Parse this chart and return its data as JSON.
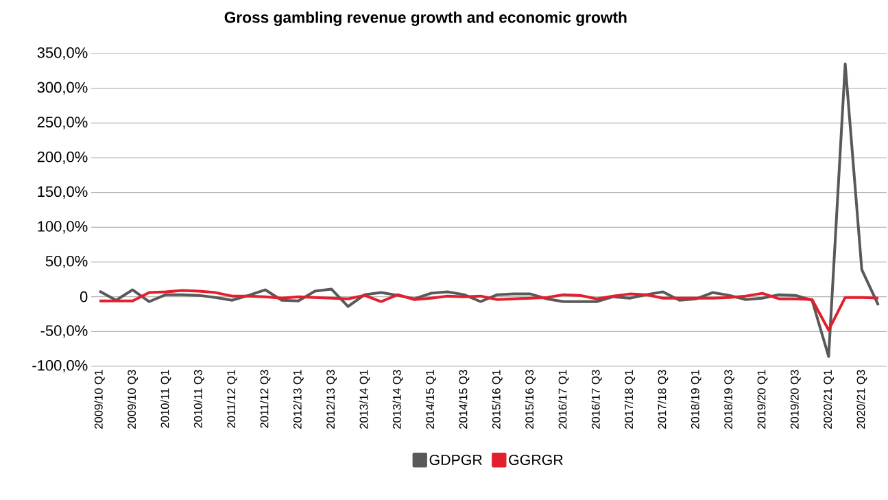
{
  "chart_data": {
    "type": "line",
    "title": "Gross gambling revenue growth and economic growth",
    "categories": [
      "2009/10 Q1",
      null,
      "2009/10 Q3",
      null,
      "2010/11 Q1",
      null,
      "2010/11 Q3",
      null,
      "2011/12 Q1",
      null,
      "2011/12 Q3",
      null,
      "2012/13 Q1",
      null,
      "2012/13 Q3",
      null,
      "2013/14 Q1",
      null,
      "2013/14 Q3",
      null,
      "2014/15 Q1",
      null,
      "2014/15 Q3",
      null,
      "2015/16 Q1",
      null,
      "2015/16 Q3",
      null,
      "2016/17 Q1",
      null,
      "2016/17 Q3",
      null,
      "2017/18 Q1",
      null,
      "2017/18 Q3",
      null,
      "2018/19 Q1",
      null,
      "2018/19 Q3",
      null,
      "2019/20 Q1",
      null,
      "2019/20 Q3",
      null,
      "2020/21 Q1",
      null,
      "2020/21 Q3",
      null
    ],
    "series": [
      {
        "name": "GDPGR",
        "color": "#595959",
        "values": [
          8,
          -5,
          10,
          -7,
          3,
          3,
          2,
          -1,
          -5,
          2,
          10,
          -5,
          -6,
          8,
          11,
          -14,
          3,
          6,
          2,
          -3,
          5,
          7,
          3,
          -7,
          3,
          4,
          4,
          -3,
          -7,
          -7,
          -7,
          0,
          -2,
          3,
          7,
          -5,
          -3,
          6,
          2,
          -4,
          -2,
          3,
          2,
          -5,
          -86,
          335,
          39,
          -12
        ]
      },
      {
        "name": "GGRGR",
        "color": "#e31e2d",
        "values": [
          -6,
          -6,
          -6,
          6,
          7,
          9,
          8,
          6,
          1,
          1,
          0,
          -2,
          0,
          -1,
          -2,
          -3,
          2,
          -7,
          3,
          -4,
          -2,
          1,
          0,
          1,
          -4,
          -3,
          -2,
          -1,
          3,
          2,
          -3,
          1,
          4,
          3,
          -2,
          -2,
          -2,
          -2,
          -1,
          1,
          5,
          -3,
          -3,
          -4,
          -48,
          -1,
          -1,
          -2
        ]
      }
    ],
    "ylim": [
      -100,
      350
    ],
    "yticks": [
      {
        "value": -100,
        "label": "-100,0%"
      },
      {
        "value": -50,
        "label": "-50,0%"
      },
      0,
      {
        "value": 50,
        "label": "50,0%"
      },
      {
        "value": 100,
        "label": "100,0%"
      },
      {
        "value": 150,
        "label": "150,0%"
      },
      {
        "value": 200,
        "label": "200,0%"
      },
      {
        "value": 250,
        "label": "250,0%"
      },
      {
        "value": 300,
        "label": "300,0%"
      },
      {
        "value": 350,
        "label": "350,0%"
      }
    ],
    "grid": "y",
    "legend": "bottom",
    "marker": "none",
    "line_style": "solid"
  }
}
